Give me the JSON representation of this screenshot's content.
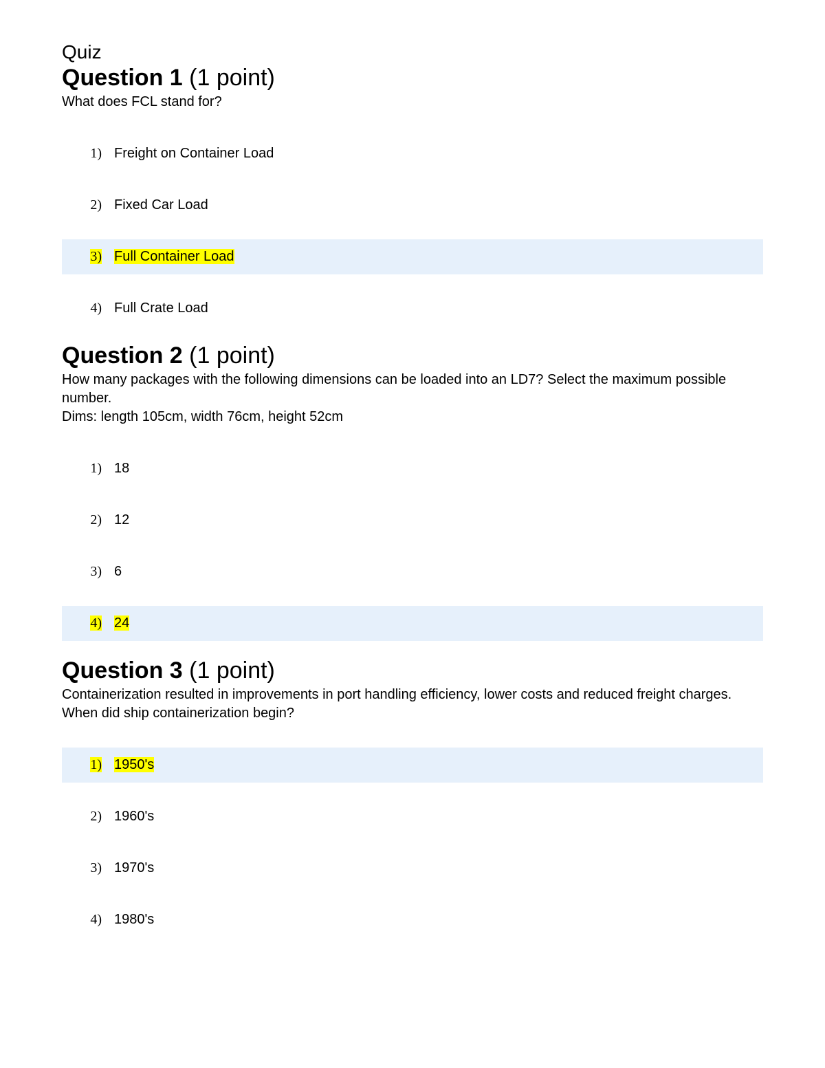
{
  "title": "Quiz",
  "colors": {
    "highlight": "#ffff00",
    "selected_row_bg": "#e6f0fb",
    "text": "#000000",
    "page_bg": "#ffffff"
  },
  "questions": [
    {
      "label": "Question 1",
      "points_suffix": " (1 point)",
      "prompt_lines": [
        "What does FCL stand for?"
      ],
      "answer_index": 2,
      "options": [
        {
          "num": "1)",
          "text": "Freight on Container Load"
        },
        {
          "num": "2)",
          "text": "Fixed Car Load"
        },
        {
          "num": "3)",
          "text": "Full Container Load"
        },
        {
          "num": "4)",
          "text": "Full Crate Load"
        }
      ]
    },
    {
      "label": "Question 2",
      "points_suffix": " (1 point)",
      "prompt_lines": [
        "How many packages with the following dimensions can be loaded into an LD7? Select the maximum possible number.",
        "Dims: length 105cm, width 76cm, height 52cm"
      ],
      "answer_index": 3,
      "options": [
        {
          "num": "1)",
          "text": "18"
        },
        {
          "num": "2)",
          "text": "12"
        },
        {
          "num": "3)",
          "text": "6"
        },
        {
          "num": "4)",
          "text": "24"
        }
      ]
    },
    {
      "label": "Question 3",
      "points_suffix": " (1 point)",
      "prompt_lines": [
        "Containerization resulted in improvements in port handling efficiency, lower costs and reduced freight charges. When did ship containerization begin?"
      ],
      "answer_index": 0,
      "options": [
        {
          "num": "1)",
          "text": "1950's"
        },
        {
          "num": "2)",
          "text": "1960's"
        },
        {
          "num": "3)",
          "text": "1970's"
        },
        {
          "num": "4)",
          "text": "1980's"
        }
      ]
    }
  ]
}
